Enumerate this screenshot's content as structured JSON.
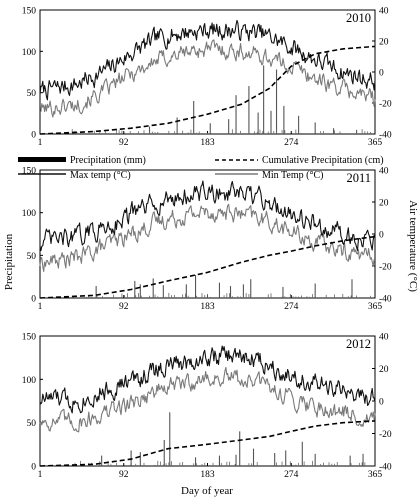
{
  "chart_data": {
    "type": "line",
    "y_label": "Precipitation",
    "y2_label": "Air temperature (°C)",
    "x_label": "Day of year",
    "x_ticks": [
      1,
      92,
      183,
      274,
      365
    ],
    "xlim": [
      1,
      365
    ],
    "ylim": [
      0,
      150
    ],
    "y_ticks": [
      0,
      50,
      100,
      150
    ],
    "y2lim": [
      -40,
      40
    ],
    "y2_ticks": [
      -40,
      -20,
      0,
      20,
      40
    ],
    "legend": {
      "placement": "top, between panels",
      "entries": [
        {
          "label": "Precipitation (mm)",
          "style": "bar",
          "color": "#000000"
        },
        {
          "label": "Cumulative Precipitation (cm)",
          "style": "dashed",
          "color": "#000000"
        },
        {
          "label": "Max temp (°C)",
          "style": "line",
          "color": "#111111"
        },
        {
          "label": "Min Temp (°C)",
          "style": "line",
          "color": "#7a7a7a"
        }
      ]
    },
    "panels": [
      {
        "year": "2010",
        "precip_axis": "left",
        "temp_axis": "right",
        "max_temp_profile": [
          [
            1,
            -12
          ],
          [
            40,
            -8
          ],
          [
            70,
            0
          ],
          [
            100,
            12
          ],
          [
            130,
            22
          ],
          [
            160,
            26
          ],
          [
            183,
            27
          ],
          [
            210,
            27
          ],
          [
            240,
            25
          ],
          [
            260,
            20
          ],
          [
            274,
            16
          ],
          [
            300,
            8
          ],
          [
            330,
            0
          ],
          [
            365,
            -6
          ]
        ],
        "min_temp_profile": [
          [
            1,
            -24
          ],
          [
            40,
            -21
          ],
          [
            70,
            -13
          ],
          [
            100,
            -1
          ],
          [
            130,
            8
          ],
          [
            160,
            13
          ],
          [
            183,
            15
          ],
          [
            210,
            14
          ],
          [
            240,
            11
          ],
          [
            260,
            7
          ],
          [
            274,
            4
          ],
          [
            300,
            -4
          ],
          [
            330,
            -11
          ],
          [
            365,
            -17
          ]
        ],
        "cumulative_precip_cm": [
          [
            1,
            0
          ],
          [
            60,
            3
          ],
          [
            100,
            7
          ],
          [
            140,
            13
          ],
          [
            183,
            24
          ],
          [
            220,
            36
          ],
          [
            250,
            55
          ],
          [
            274,
            82
          ],
          [
            300,
            97
          ],
          [
            330,
            103
          ],
          [
            365,
            106
          ]
        ],
        "daily_precip_mm": [
          [
            120,
            9
          ],
          [
            150,
            20
          ],
          [
            168,
            40
          ],
          [
            186,
            13
          ],
          [
            206,
            18
          ],
          [
            214,
            47
          ],
          [
            228,
            58
          ],
          [
            238,
            26
          ],
          [
            244,
            83
          ],
          [
            252,
            28
          ],
          [
            258,
            78
          ],
          [
            266,
            34
          ],
          [
            282,
            22
          ],
          [
            300,
            14
          ],
          [
            320,
            7
          ],
          [
            345,
            5
          ]
        ]
      },
      {
        "year": "2011",
        "precip_axis": "left",
        "temp_axis": "right",
        "max_temp_profile": [
          [
            1,
            -5
          ],
          [
            40,
            -2
          ],
          [
            70,
            4
          ],
          [
            100,
            12
          ],
          [
            130,
            20
          ],
          [
            160,
            24
          ],
          [
            183,
            26
          ],
          [
            210,
            25
          ],
          [
            240,
            22
          ],
          [
            260,
            17
          ],
          [
            274,
            13
          ],
          [
            300,
            6
          ],
          [
            330,
            0
          ],
          [
            365,
            -4
          ]
        ],
        "min_temp_profile": [
          [
            1,
            -18
          ],
          [
            40,
            -15
          ],
          [
            70,
            -8
          ],
          [
            100,
            0
          ],
          [
            130,
            8
          ],
          [
            160,
            12
          ],
          [
            183,
            14
          ],
          [
            210,
            13
          ],
          [
            240,
            10
          ],
          [
            260,
            5
          ],
          [
            274,
            1
          ],
          [
            300,
            -5
          ],
          [
            330,
            -11
          ],
          [
            365,
            -14
          ]
        ],
        "cumulative_precip_cm": [
          [
            1,
            0
          ],
          [
            60,
            3
          ],
          [
            100,
            10
          ],
          [
            140,
            20
          ],
          [
            183,
            30
          ],
          [
            220,
            42
          ],
          [
            250,
            50
          ],
          [
            274,
            55
          ],
          [
            300,
            61
          ],
          [
            330,
            67
          ],
          [
            365,
            72
          ]
        ],
        "daily_precip_mm": [
          [
            62,
            14
          ],
          [
            104,
            20
          ],
          [
            110,
            16
          ],
          [
            124,
            23
          ],
          [
            135,
            15
          ],
          [
            160,
            16
          ],
          [
            170,
            27
          ],
          [
            196,
            18
          ],
          [
            208,
            14
          ],
          [
            222,
            16
          ],
          [
            230,
            22
          ],
          [
            265,
            13
          ],
          [
            300,
            17
          ],
          [
            340,
            22
          ]
        ]
      },
      {
        "year": "2012",
        "precip_axis": "left",
        "temp_axis": "right",
        "max_temp_profile": [
          [
            1,
            2
          ],
          [
            40,
            0
          ],
          [
            70,
            6
          ],
          [
            100,
            12
          ],
          [
            130,
            20
          ],
          [
            160,
            24
          ],
          [
            183,
            27
          ],
          [
            210,
            28
          ],
          [
            240,
            25
          ],
          [
            260,
            20
          ],
          [
            274,
            16
          ],
          [
            300,
            10
          ],
          [
            330,
            6
          ],
          [
            365,
            0
          ]
        ],
        "min_temp_profile": [
          [
            1,
            -12
          ],
          [
            40,
            -13
          ],
          [
            70,
            -8
          ],
          [
            100,
            -1
          ],
          [
            130,
            7
          ],
          [
            160,
            11
          ],
          [
            183,
            14
          ],
          [
            210,
            14
          ],
          [
            240,
            11
          ],
          [
            260,
            6
          ],
          [
            274,
            2
          ],
          [
            300,
            -3
          ],
          [
            330,
            -7
          ],
          [
            365,
            -12
          ]
        ],
        "cumulative_precip_cm": [
          [
            1,
            0
          ],
          [
            60,
            2
          ],
          [
            100,
            8
          ],
          [
            140,
            20
          ],
          [
            183,
            25
          ],
          [
            220,
            30
          ],
          [
            250,
            34
          ],
          [
            274,
            40
          ],
          [
            300,
            46
          ],
          [
            330,
            50
          ],
          [
            365,
            52
          ]
        ],
        "daily_precip_mm": [
          [
            68,
            12
          ],
          [
            100,
            18
          ],
          [
            110,
            16
          ],
          [
            136,
            30
          ],
          [
            142,
            62
          ],
          [
            170,
            10
          ],
          [
            196,
            12
          ],
          [
            214,
            13
          ],
          [
            218,
            40
          ],
          [
            233,
            20
          ],
          [
            256,
            15
          ],
          [
            268,
            18
          ],
          [
            286,
            28
          ],
          [
            300,
            14
          ],
          [
            338,
            12
          ],
          [
            352,
            14
          ]
        ]
      }
    ]
  }
}
